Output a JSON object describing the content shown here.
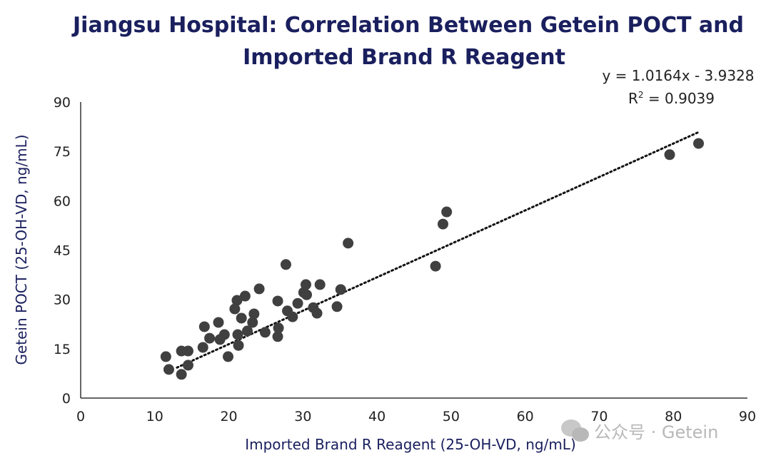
{
  "chart_data": {
    "type": "scatter",
    "title_lines": [
      "Jiangsu Hospital: Correlation Between Getein POCT and",
      "Imported Brand R Reagent"
    ],
    "xlabel": "Imported Brand R Reagent (25-OH-VD, ng/mL)",
    "ylabel": "Getein POCT (25-OH-VD, ng/mL)",
    "xlim": [
      0,
      90
    ],
    "ylim": [
      0,
      90
    ],
    "xticks": [
      0,
      10,
      20,
      30,
      40,
      50,
      60,
      70,
      80,
      90
    ],
    "yticks": [
      0,
      15,
      30,
      45,
      60,
      75,
      90
    ],
    "grid": false,
    "equation": "y = 1.0164x - 3.9328",
    "r2_label": "R",
    "r2_value": " = 0.9039",
    "trendline": {
      "slope": 1.0164,
      "intercept": -3.9328,
      "x_range": [
        13,
        83.5
      ]
    },
    "point_color": "#404040",
    "points": [
      [
        11.5,
        12.6
      ],
      [
        11.9,
        8.7
      ],
      [
        13.6,
        7.2
      ],
      [
        13.6,
        14.3
      ],
      [
        14.5,
        14.3
      ],
      [
        14.5,
        10.0
      ],
      [
        16.5,
        15.4
      ],
      [
        16.7,
        21.7
      ],
      [
        17.4,
        18.2
      ],
      [
        18.6,
        23.0
      ],
      [
        18.8,
        17.8
      ],
      [
        19.4,
        19.3
      ],
      [
        19.9,
        12.6
      ],
      [
        20.8,
        27.1
      ],
      [
        21.1,
        29.7
      ],
      [
        21.2,
        19.3
      ],
      [
        21.3,
        16.0
      ],
      [
        21.7,
        24.3
      ],
      [
        22.2,
        31.0
      ],
      [
        22.5,
        20.4
      ],
      [
        23.2,
        23.0
      ],
      [
        23.4,
        25.6
      ],
      [
        24.1,
        33.2
      ],
      [
        24.9,
        20.0
      ],
      [
        26.6,
        18.7
      ],
      [
        26.6,
        29.5
      ],
      [
        26.7,
        21.3
      ],
      [
        27.7,
        40.6
      ],
      [
        27.9,
        26.5
      ],
      [
        28.6,
        24.7
      ],
      [
        29.3,
        28.8
      ],
      [
        30.1,
        32.1
      ],
      [
        30.4,
        34.5
      ],
      [
        30.5,
        31.4
      ],
      [
        31.4,
        27.5
      ],
      [
        31.9,
        25.8
      ],
      [
        32.3,
        34.5
      ],
      [
        34.6,
        27.8
      ],
      [
        35.1,
        33.0
      ],
      [
        36.1,
        47.1
      ],
      [
        47.9,
        40.1
      ],
      [
        48.9,
        52.9
      ],
      [
        49.4,
        56.6
      ],
      [
        79.5,
        74.0
      ],
      [
        83.4,
        77.4
      ]
    ]
  },
  "watermark": "公众号 · Getein"
}
